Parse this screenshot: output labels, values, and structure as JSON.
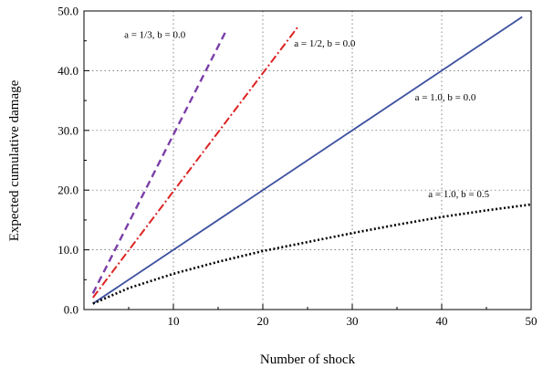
{
  "chart_data": {
    "type": "line",
    "title": "",
    "xlabel": "Number of shock",
    "ylabel": "Expected cumulative damage",
    "xlim": [
      0,
      50
    ],
    "ylim": [
      0,
      50
    ],
    "x_ticks": [
      "10",
      "20",
      "30",
      "40",
      "50"
    ],
    "y_ticks": [
      "0.0",
      "10.0",
      "20.0",
      "30.0",
      "40.0",
      "50.0"
    ],
    "grid": true,
    "legend": "none",
    "series": [
      {
        "label": "a = 1/3,  b = 0.0",
        "style": "dashed",
        "color": "#7b3fa8",
        "x": [
          1,
          16
        ],
        "y": [
          2.7,
          47
        ]
      },
      {
        "label": "a = 1/2,  b = 0.0",
        "style": "dash-dot",
        "color": "#dd2222",
        "x": [
          1,
          24
        ],
        "y": [
          2.0,
          47.5
        ]
      },
      {
        "label": "a = 1.0,  b = 0.0",
        "style": "solid",
        "color": "#3a4fa0",
        "x": [
          1,
          49
        ],
        "y": [
          1.0,
          49
        ]
      },
      {
        "label": "a = 1.0,  b = 0.5",
        "style": "dotted",
        "color": "#000000",
        "x": [
          1,
          5,
          10,
          15,
          20,
          25,
          30,
          35,
          40,
          45,
          50
        ],
        "y": [
          1.0,
          3.6,
          6.0,
          8.0,
          9.8,
          11.3,
          12.8,
          14.2,
          15.5,
          16.6,
          17.6
        ]
      }
    ]
  }
}
